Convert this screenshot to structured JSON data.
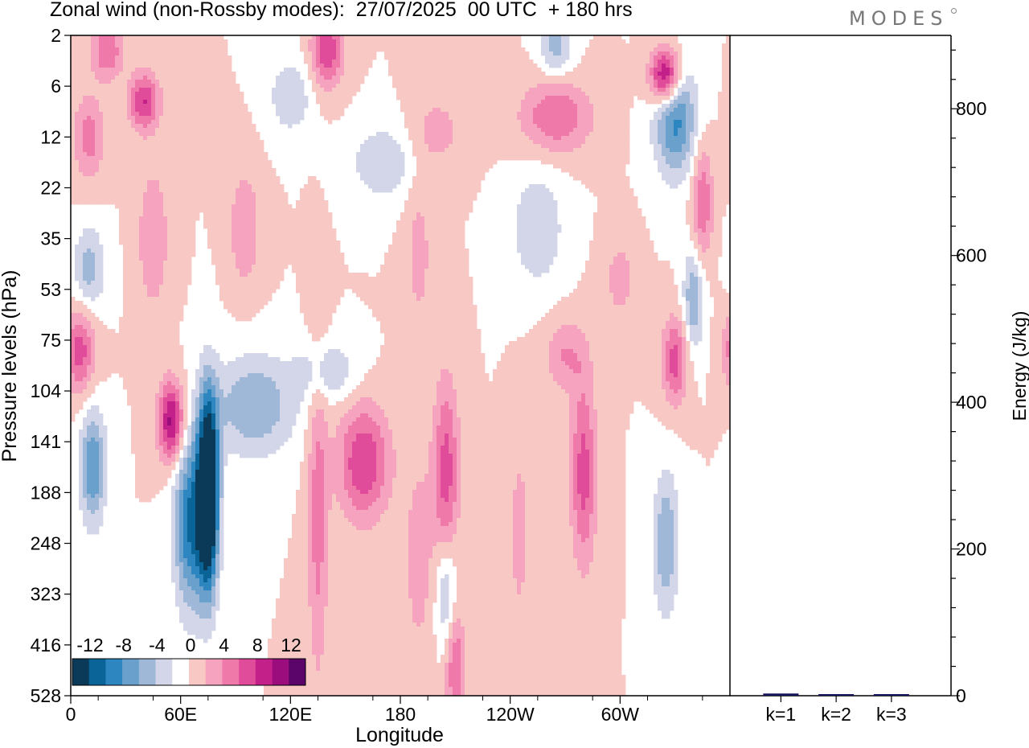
{
  "header": {
    "title": "Zonal wind (non-Rossby modes):  27/07/2025  00 UTC  + 180 hrs",
    "brand": "MODES"
  },
  "colors": {
    "blues": [
      "#0b3a58",
      "#0a6497",
      "#2e86c1",
      "#6aa1cc",
      "#9fb8d8",
      "#d3d6e8"
    ],
    "neutral": "#ffffff",
    "pinks": [
      "#f8c8c4",
      "#f6a3bf",
      "#ef7aaa",
      "#e04b9a",
      "#c3208a",
      "#9b0d7c",
      "#5b056b"
    ],
    "bar": "#15135a"
  },
  "chart_data": [
    {
      "type": "heatmap",
      "title": "Zonal wind (non-Rossby modes):  27/07/2025  00 UTC  + 180 hrs",
      "xlabel": "Longitude",
      "ylabel": "Pressure levels (hPa)",
      "x_ticks": [
        "0",
        "60E",
        "120E",
        "180",
        "120W",
        "60W"
      ],
      "y_ticks": [
        "2",
        "6",
        "12",
        "22",
        "35",
        "53",
        "75",
        "104",
        "141",
        "188",
        "248",
        "323",
        "416",
        "528"
      ],
      "colorbar": {
        "labels": [
          "-12",
          "-8",
          "-4",
          "0",
          "4",
          "8",
          "12"
        ],
        "levels": [
          -14,
          -12,
          -10,
          -8,
          -6,
          -4,
          -2,
          0,
          2,
          4,
          6,
          8,
          10,
          12,
          14
        ]
      },
      "features": [
        {
          "lon": 75,
          "level": 9,
          "value": -20,
          "sx": 4,
          "sy": 1.3
        },
        {
          "lon": 65,
          "level": 9.6,
          "value": -10,
          "sx": 6,
          "sy": 1.2
        },
        {
          "lon": 100,
          "level": 7.3,
          "value": -6,
          "sx": 16,
          "sy": 0.7
        },
        {
          "lon": 140,
          "level": 6.6,
          "value": -4,
          "sx": 12,
          "sy": 0.4
        },
        {
          "lon": 12,
          "level": 8.5,
          "value": -8,
          "sx": 5,
          "sy": 0.8
        },
        {
          "lon": 55,
          "level": 7.6,
          "value": 11,
          "sx": 5,
          "sy": 0.55
        },
        {
          "lon": 5,
          "level": 6.2,
          "value": 7,
          "sx": 6,
          "sy": 0.6
        },
        {
          "lon": 160,
          "level": 8.4,
          "value": 8,
          "sx": 10,
          "sy": 0.8
        },
        {
          "lon": 135,
          "level": 9.5,
          "value": 5,
          "sx": 4,
          "sy": 2.2
        },
        {
          "lon": 205,
          "level": 8.6,
          "value": 7,
          "sx": 5,
          "sy": 1.3
        },
        {
          "lon": 280,
          "level": 8.6,
          "value": 7,
          "sx": 5,
          "sy": 1.3
        },
        {
          "lon": 190,
          "level": 10.3,
          "value": 3,
          "sx": 6,
          "sy": 1.5
        },
        {
          "lon": 245,
          "level": 9.8,
          "value": 3,
          "sx": 4,
          "sy": 1.3
        },
        {
          "lon": 205,
          "level": 11,
          "value": -5,
          "sx": 4,
          "sy": 0.8
        },
        {
          "lon": 325,
          "level": 10,
          "value": -6,
          "sx": 5,
          "sy": 1
        },
        {
          "lon": 210,
          "level": 12.4,
          "value": 6,
          "sx": 4,
          "sy": 0.8
        },
        {
          "lon": 330,
          "level": 6.4,
          "value": 7,
          "sx": 5,
          "sy": 0.6
        },
        {
          "lon": 340,
          "level": 5.2,
          "value": -6,
          "sx": 4,
          "sy": 0.7
        },
        {
          "lon": 270,
          "level": 6.3,
          "value": 4,
          "sx": 8,
          "sy": 0.5
        },
        {
          "lon": 45,
          "level": 4,
          "value": 4,
          "sx": 6,
          "sy": 1
        },
        {
          "lon": 10,
          "level": 4.6,
          "value": -5,
          "sx": 6,
          "sy": 0.6
        },
        {
          "lon": 140,
          "level": 0.3,
          "value": 8,
          "sx": 6,
          "sy": 0.5
        },
        {
          "lon": 325,
          "level": 0.8,
          "value": 13,
          "sx": 6,
          "sy": 0.4
        },
        {
          "lon": 330,
          "level": 1.6,
          "value": -9,
          "sx": 8,
          "sy": 0.8
        },
        {
          "lon": 265,
          "level": 1.6,
          "value": 6,
          "sx": 14,
          "sy": 0.5
        },
        {
          "lon": 200,
          "level": 1.9,
          "value": 3,
          "sx": 10,
          "sy": 0.5
        },
        {
          "lon": 40,
          "level": 1.3,
          "value": 8,
          "sx": 6,
          "sy": 0.4
        },
        {
          "lon": 10,
          "level": 2,
          "value": 5,
          "sx": 6,
          "sy": 0.6
        },
        {
          "lon": 255,
          "level": 3.8,
          "value": -4,
          "sx": 10,
          "sy": 0.8
        },
        {
          "lon": 170,
          "level": 2.5,
          "value": -4,
          "sx": 12,
          "sy": 0.5
        },
        {
          "lon": 345,
          "level": 3.3,
          "value": 6,
          "sx": 4,
          "sy": 0.8
        },
        {
          "lon": 95,
          "level": 3.8,
          "value": 4,
          "sx": 6,
          "sy": 0.8
        },
        {
          "lon": 190,
          "level": 4.3,
          "value": 3,
          "sx": 5,
          "sy": 1
        },
        {
          "lon": 300,
          "level": 4.8,
          "value": 3,
          "sx": 6,
          "sy": 0.6
        },
        {
          "lon": 20,
          "level": 0.3,
          "value": 6,
          "sx": 6,
          "sy": 0.4
        },
        {
          "lon": 265,
          "level": 0.2,
          "value": -5,
          "sx": 6,
          "sy": 0.4
        },
        {
          "lon": 120,
          "level": 1.2,
          "value": -4,
          "sx": 8,
          "sy": 0.5
        }
      ]
    },
    {
      "type": "bar",
      "ylabel": "Energy (J/kg)",
      "categories": [
        "k=1",
        "k=2",
        "k=3"
      ],
      "values": [
        3,
        1.5,
        1
      ],
      "ylim": [
        0,
        900
      ],
      "y_ticks": [
        "0",
        "200",
        "400",
        "600",
        "800"
      ]
    }
  ]
}
